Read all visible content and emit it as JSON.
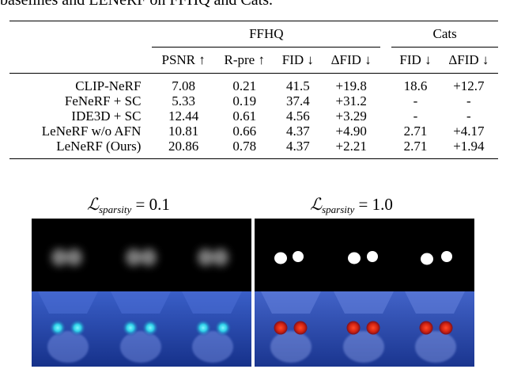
{
  "caption": "baselines and LENeRF on FFHQ and Cats.",
  "table": {
    "groups": [
      "FFHQ",
      "Cats"
    ],
    "columns": [
      "PSNR ↑",
      "R-pre ↑",
      "FID ↓",
      "ΔFID ↓",
      "FID ↓",
      "ΔFID ↓"
    ],
    "rows": [
      {
        "method": "CLIP-NeRF",
        "values": [
          "7.08",
          "0.21",
          "41.5",
          "+19.8",
          "18.6",
          "+12.7"
        ],
        "bold": [
          false,
          false,
          false,
          false,
          false,
          false
        ],
        "method_bold": false
      },
      {
        "method": "FeNeRF + SC",
        "values": [
          "5.33",
          "0.19",
          "37.4",
          "+31.2",
          "-",
          "-"
        ],
        "bold": [
          false,
          false,
          false,
          false,
          false,
          false
        ],
        "method_bold": false
      },
      {
        "method": "IDE3D + SC",
        "values": [
          "12.44",
          "0.61",
          "4.56",
          "+3.29",
          "-",
          "-"
        ],
        "bold": [
          false,
          false,
          false,
          false,
          false,
          false
        ],
        "method_bold": false
      },
      {
        "method": "LeNeRF w/o AFN",
        "values": [
          "10.81",
          "0.66",
          "4.37",
          "+4.90",
          "2.71",
          "+4.17"
        ],
        "bold": [
          false,
          false,
          true,
          false,
          true,
          false
        ],
        "method_bold": false
      },
      {
        "method": "LeNeRF (Ours)",
        "values": [
          "20.86",
          "0.78",
          "4.37",
          "+2.21",
          "2.71",
          "+1.94"
        ],
        "bold": [
          true,
          true,
          true,
          true,
          true,
          true
        ],
        "method_bold": true
      }
    ]
  },
  "figure": {
    "panels": [
      {
        "loss_symbol": "ℒ",
        "subscript": "sparsity",
        "value": "= 0.1"
      },
      {
        "loss_symbol": "ℒ",
        "subscript": "sparsity",
        "value": "= 1.0"
      }
    ]
  }
}
